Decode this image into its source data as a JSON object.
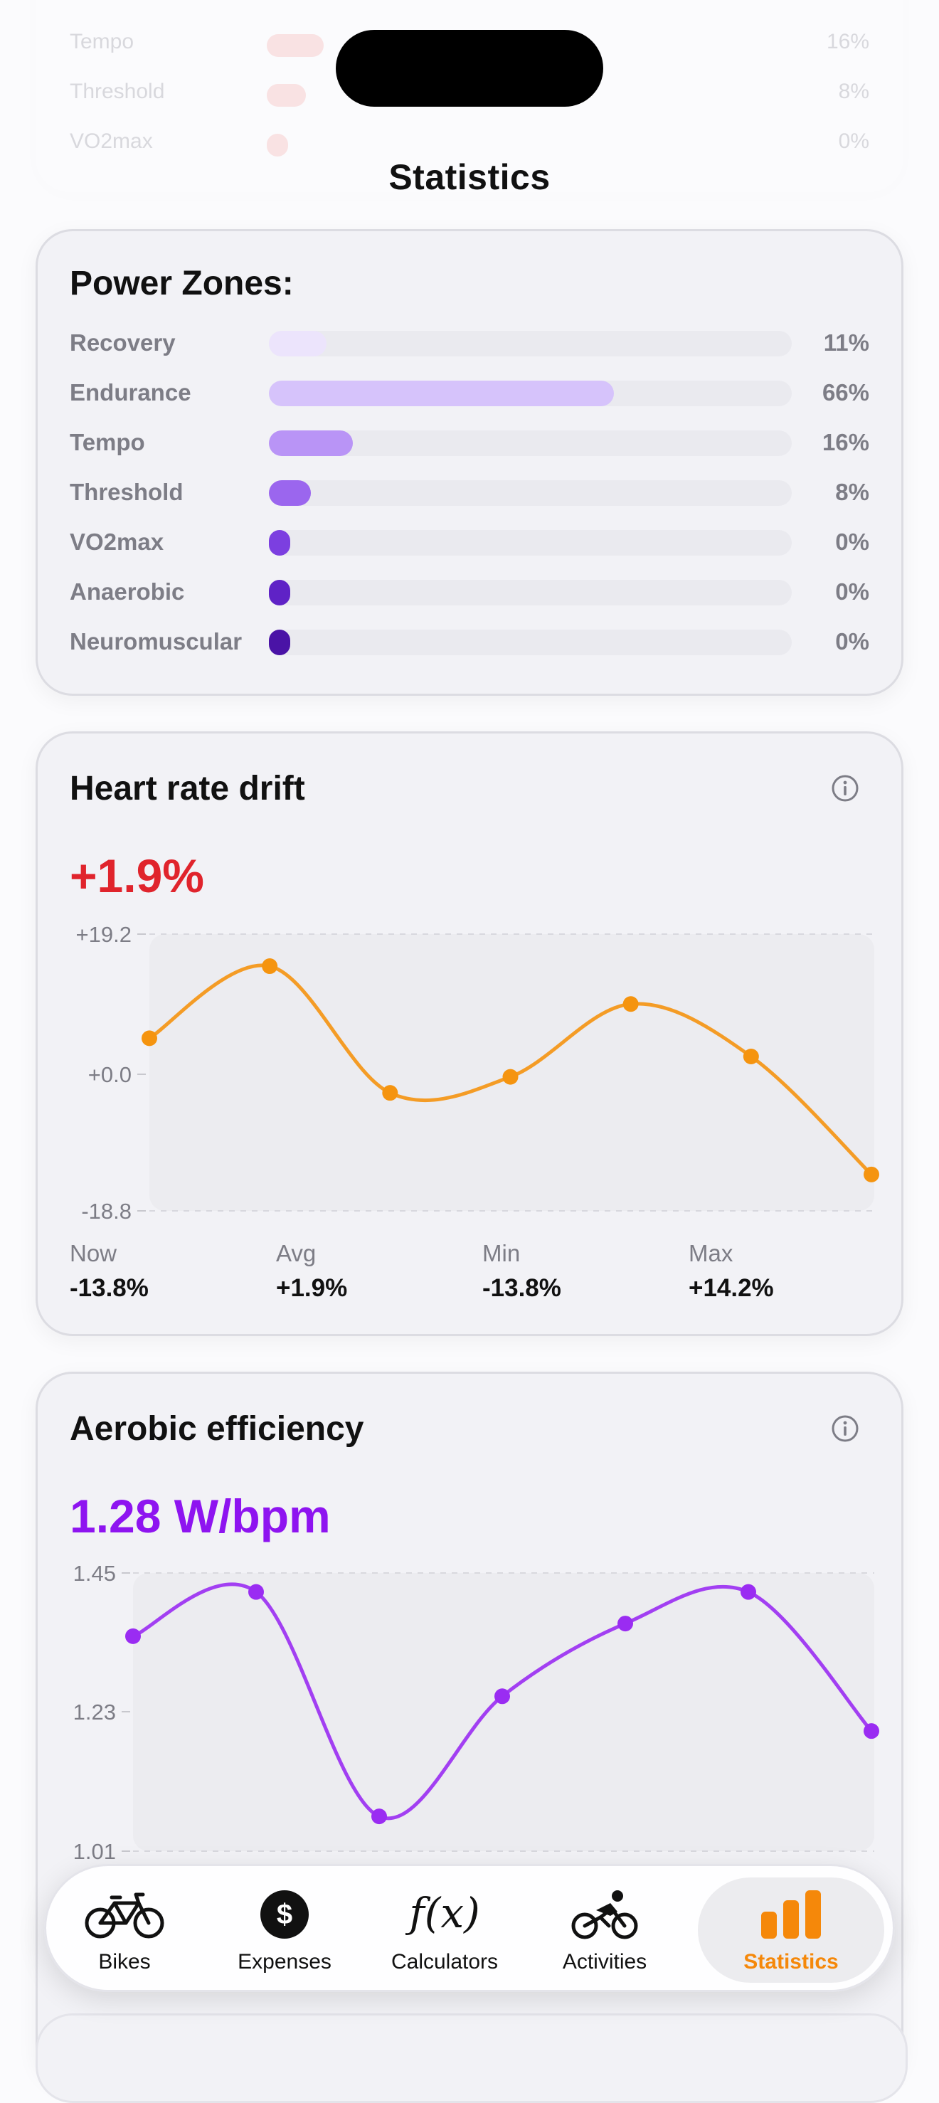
{
  "header": {
    "title": "Statistics"
  },
  "ghost_zones": [
    {
      "label": "Tempo",
      "pct": "16%"
    },
    {
      "label": "Threshold",
      "pct": "8%"
    },
    {
      "label": "VO2max",
      "pct": "0%"
    }
  ],
  "power_zones": {
    "title": "Power Zones:",
    "zones": [
      {
        "label": "Recovery",
        "value": 11,
        "pct": "11%",
        "color": "#ece4fc"
      },
      {
        "label": "Endurance",
        "value": 66,
        "pct": "66%",
        "color": "#d6c3fb"
      },
      {
        "label": "Tempo",
        "value": 16,
        "pct": "16%",
        "color": "#b994f6"
      },
      {
        "label": "Threshold",
        "value": 8,
        "pct": "8%",
        "color": "#9b66ee"
      },
      {
        "label": "VO2max",
        "value": 0,
        "pct": "0%",
        "color": "#7c3fe0"
      },
      {
        "label": "Anaerobic",
        "value": 0,
        "pct": "0%",
        "color": "#5f22c6"
      },
      {
        "label": "Neuromuscular",
        "value": 0,
        "pct": "0%",
        "color": "#4a13a6"
      }
    ]
  },
  "heart_rate_drift": {
    "title": "Heart rate drift",
    "value": "+1.9%",
    "value_color": "#e0242c",
    "stats": [
      {
        "label": "Now",
        "value": "-13.8%"
      },
      {
        "label": "Avg",
        "value": "+1.9%"
      },
      {
        "label": "Min",
        "value": "-13.8%"
      },
      {
        "label": "Max",
        "value": "+14.2%"
      }
    ]
  },
  "aerobic_efficiency": {
    "title": "Aerobic efficiency",
    "value": "1.28 W/bpm",
    "value_color": "#8e14f0"
  },
  "tabs": [
    {
      "label": "Bikes",
      "icon": "bike-icon",
      "active": false
    },
    {
      "label": "Expenses",
      "icon": "dollar-icon",
      "active": false
    },
    {
      "label": "Calculators",
      "icon": "function-icon",
      "active": false
    },
    {
      "label": "Activities",
      "icon": "cyclist-icon",
      "active": false
    },
    {
      "label": "Statistics",
      "icon": "bar-chart-icon",
      "active": true
    }
  ],
  "accent_color": "#f5880a",
  "chart_data": [
    {
      "type": "line",
      "y_ticks": [
        "+19.2",
        "+0.0",
        "-18.8"
      ],
      "ylim": [
        -18.8,
        19.2
      ],
      "color": "#f5940f",
      "series": [
        {
          "values": [
            4.9,
            14.8,
            -2.6,
            -0.4,
            9.6,
            2.4,
            -13.8
          ]
        }
      ]
    },
    {
      "type": "line",
      "y_ticks": [
        "1.45",
        "1.23",
        "1.01"
      ],
      "ylim": [
        1.01,
        1.45
      ],
      "color": "#9a2cf2",
      "series": [
        {
          "values": [
            1.35,
            1.42,
            1.065,
            1.255,
            1.37,
            1.42,
            1.2
          ]
        }
      ]
    }
  ]
}
